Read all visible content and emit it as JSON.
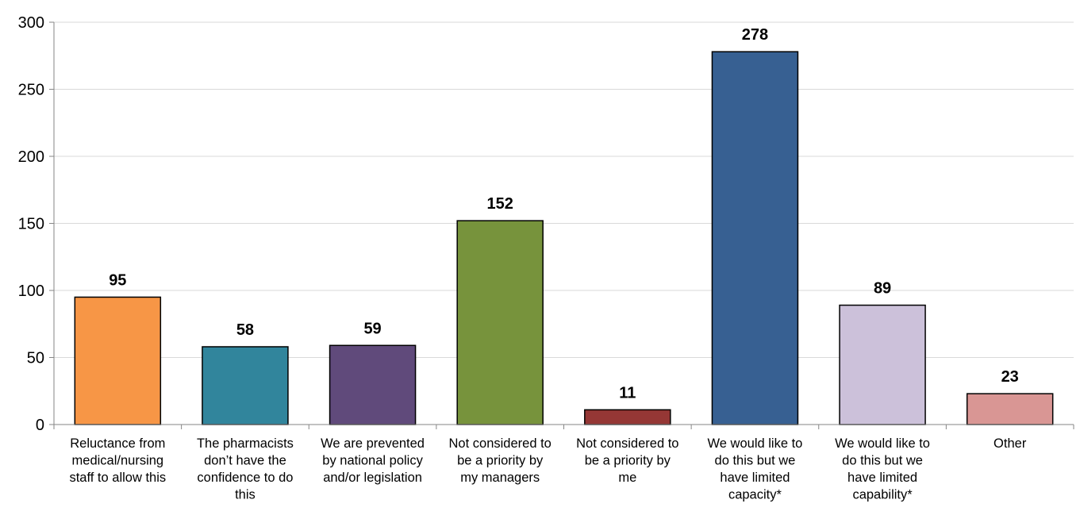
{
  "chart_data": {
    "type": "bar",
    "title": "",
    "xlabel": "",
    "ylabel": "",
    "ylim": [
      0,
      300
    ],
    "yticks": [
      0,
      50,
      100,
      150,
      200,
      250,
      300
    ],
    "grid": true,
    "legend": "none",
    "categories": [
      [
        "Reluctance from",
        "medical/nursing",
        "staff to allow this"
      ],
      [
        "The pharmacists",
        "don’t have the",
        "confidence to do",
        "this"
      ],
      [
        "We are prevented",
        "by national policy",
        "and/or legislation"
      ],
      [
        "Not considered to",
        "be a priority by",
        "my managers"
      ],
      [
        "Not considered to",
        "be a priority by",
        "me"
      ],
      [
        "We would like to",
        "do this but we",
        "have limited",
        "capacity*"
      ],
      [
        "We would like to",
        "do this but we",
        "have limited",
        "capability*"
      ],
      [
        "Other"
      ]
    ],
    "values": [
      95,
      58,
      59,
      152,
      11,
      278,
      89,
      23
    ],
    "colors": [
      "#f79646",
      "#31859c",
      "#604a7b",
      "#77933c",
      "#953735",
      "#376092",
      "#ccc1da",
      "#d99694"
    ],
    "gridline_color": "#d9d9d9",
    "axis_color": "#868686"
  }
}
